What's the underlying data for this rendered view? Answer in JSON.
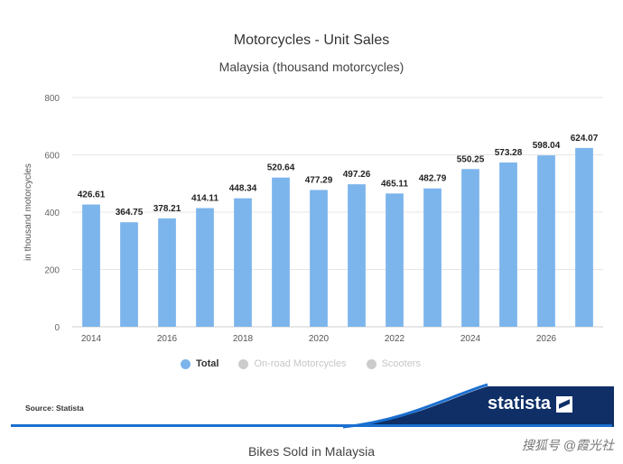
{
  "chart_data": {
    "type": "bar",
    "title": "Motorcycles - Unit Sales",
    "subtitle": "Malaysia (thousand motorcycles)",
    "ylabel": "in thousand motorcycles",
    "ylim": [
      0,
      800
    ],
    "yticks": [
      0,
      200,
      400,
      600,
      800
    ],
    "grid": true,
    "legend_position": "bottom",
    "categories": [
      "2014",
      "2015",
      "2016",
      "2017",
      "2018",
      "2019",
      "2020",
      "2021",
      "2022",
      "2023",
      "2024",
      "2025",
      "2026",
      "2027"
    ],
    "xtick_labels": [
      "2014",
      "2016",
      "2018",
      "2020",
      "2022",
      "2024",
      "2026"
    ],
    "series": [
      {
        "name": "Total",
        "color": "#7cb5ec",
        "values": [
          426.61,
          364.75,
          378.21,
          414.11,
          448.34,
          520.64,
          477.29,
          497.26,
          465.11,
          482.79,
          550.25,
          573.28,
          598.04,
          624.07
        ]
      }
    ]
  },
  "legend": {
    "items": [
      {
        "label": "Total",
        "color": "#7cb5ec",
        "active": true
      },
      {
        "label": "On-road Motorcycles",
        "color": "#cccccc",
        "active": false
      },
      {
        "label": "Scooters",
        "color": "#cccccc",
        "active": false
      }
    ]
  },
  "footer": {
    "source": "Source: Statista",
    "brand": "statista"
  },
  "caption": "Bikes Sold in Malaysia",
  "watermark": "搜狐号 @霞光社"
}
